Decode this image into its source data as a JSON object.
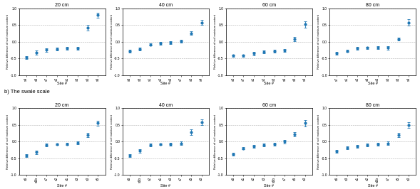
{
  "chart_data": [
    {
      "type": "scatter",
      "title": "20 cm",
      "x_label": "Site #",
      "y_label": "Relative difference of soil moisture content",
      "categories": [
        "s4",
        "s5",
        "s7",
        "s2",
        "s1",
        "s3",
        "s0",
        "s6"
      ],
      "values": [
        -0.48,
        -0.32,
        -0.25,
        -0.22,
        -0.2,
        -0.2,
        0.42,
        0.8
      ],
      "errors": [
        0.04,
        0.06,
        0.06,
        0.04,
        0.05,
        0.05,
        0.09,
        0.07
      ],
      "ylim": [
        -1.0,
        1.0
      ],
      "yticks": [
        {
          "value": -1.0,
          "label": "-1.0"
        },
        {
          "value": -0.5,
          "label": "-0.5"
        },
        {
          "value": 0.0,
          "label": "0.0"
        },
        {
          "value": 0.5,
          "label": "0.5"
        },
        {
          "value": 1.0,
          "label": "1.0"
        }
      ],
      "grid": "y",
      "marker": "circle"
    },
    {
      "type": "scatter",
      "title": "40 cm",
      "x_label": "Site #",
      "y_label": "Relative difference of soil moisture content",
      "categories": [
        "s6",
        "s5",
        "s1",
        "s2",
        "s3",
        "s7",
        "s0",
        "s4"
      ],
      "values": [
        -0.28,
        -0.22,
        -0.08,
        -0.04,
        -0.02,
        0.02,
        0.26,
        0.58
      ],
      "errors": [
        0.05,
        0.05,
        0.04,
        0.04,
        0.04,
        0.04,
        0.06,
        0.07
      ],
      "ylim": [
        -1.0,
        1.0
      ],
      "yticks": [
        {
          "value": -1.0,
          "label": "-1.0"
        },
        {
          "value": -0.5,
          "label": "-0.5"
        },
        {
          "value": 0.0,
          "label": "0.0"
        },
        {
          "value": 0.5,
          "label": "0.5"
        },
        {
          "value": 1.0,
          "label": "1.0"
        }
      ],
      "grid": "y",
      "marker": "circle"
    },
    {
      "type": "scatter",
      "title": "60 cm",
      "x_label": "Site #",
      "y_label": "Relative difference of soil moisture content",
      "categories": [
        "s0",
        "s7",
        "s1",
        "s2",
        "s3",
        "s6",
        "s5",
        "s4"
      ],
      "values": [
        -0.42,
        -0.42,
        -0.35,
        -0.3,
        -0.28,
        -0.26,
        0.08,
        0.52
      ],
      "errors": [
        0.04,
        0.04,
        0.05,
        0.04,
        0.04,
        0.05,
        0.07,
        0.1
      ],
      "ylim": [
        -1.0,
        1.0
      ],
      "yticks": [
        {
          "value": -1.0,
          "label": "-1.0"
        },
        {
          "value": -0.5,
          "label": "-0.5"
        },
        {
          "value": 0.0,
          "label": "0.0"
        },
        {
          "value": 0.5,
          "label": "0.5"
        },
        {
          "value": 1.0,
          "label": "1.0"
        }
      ],
      "grid": "y",
      "marker": "circle"
    },
    {
      "type": "scatter",
      "title": "80 cm",
      "x_label": "Site #",
      "y_label": "Relative difference of soil moisture content",
      "categories": [
        "s7",
        "s1",
        "s2",
        "s6",
        "s3",
        "s0",
        "s5",
        "s4"
      ],
      "values": [
        -0.35,
        -0.28,
        -0.2,
        -0.18,
        -0.18,
        -0.18,
        0.08,
        0.58
      ],
      "errors": [
        0.04,
        0.03,
        0.04,
        0.03,
        0.04,
        0.05,
        0.05,
        0.09
      ],
      "ylim": [
        -1.0,
        1.0
      ],
      "yticks": [
        {
          "value": -1.0,
          "label": "-1.0"
        },
        {
          "value": -0.5,
          "label": "-0.5"
        },
        {
          "value": 0.0,
          "label": "0.0"
        },
        {
          "value": 0.5,
          "label": "0.5"
        },
        {
          "value": 1.0,
          "label": "1.0"
        }
      ],
      "grid": "y",
      "marker": "circle"
    },
    {
      "type": "scatter",
      "title": "20 cm",
      "x_label": "Site #",
      "y_label": "Relative difference of soil moisture content",
      "annotation": "b) The swale scale",
      "categories": [
        "s6",
        "s6b",
        "s7",
        "s2",
        "s1",
        "s3",
        "s0",
        "s5"
      ],
      "values": [
        -0.42,
        -0.32,
        -0.1,
        -0.08,
        -0.07,
        -0.04,
        0.2,
        0.55
      ],
      "errors": [
        0.04,
        0.05,
        0.04,
        0.03,
        0.04,
        0.04,
        0.07,
        0.07
      ],
      "ylim": [
        -1.0,
        1.0
      ],
      "yticks": [
        {
          "value": -1.0,
          "label": "-1.0"
        },
        {
          "value": -0.5,
          "label": "-0.5"
        },
        {
          "value": 0.0,
          "label": "0.0"
        },
        {
          "value": 0.5,
          "label": "0.5"
        },
        {
          "value": 1.0,
          "label": "1.0"
        }
      ],
      "grid": "y",
      "marker": "circle"
    },
    {
      "type": "scatter",
      "title": "40 cm",
      "x_label": "Site #",
      "y_label": "Relative difference of soil moisture content",
      "categories": [
        "s6",
        "s6b",
        "s2",
        "s1",
        "s3",
        "s7",
        "s5",
        "s0"
      ],
      "values": [
        -0.42,
        -0.28,
        -0.1,
        -0.08,
        -0.08,
        -0.05,
        0.28,
        0.58
      ],
      "errors": [
        0.04,
        0.05,
        0.04,
        0.03,
        0.04,
        0.06,
        0.09,
        0.09
      ],
      "ylim": [
        -1.0,
        1.0
      ],
      "yticks": [
        {
          "value": -1.0,
          "label": "-1.0"
        },
        {
          "value": -0.5,
          "label": "-0.5"
        },
        {
          "value": 0.0,
          "label": "0.0"
        },
        {
          "value": 0.5,
          "label": "0.5"
        },
        {
          "value": 1.0,
          "label": "1.0"
        }
      ],
      "grid": "y",
      "marker": "circle"
    },
    {
      "type": "scatter",
      "title": "60 cm",
      "x_label": "Site #",
      "y_label": "Relative difference of soil moisture content",
      "categories": [
        "s6",
        "s1",
        "s2",
        "s3",
        "s6b",
        "s7",
        "s5",
        "s0"
      ],
      "values": [
        -0.38,
        -0.2,
        -0.15,
        -0.1,
        -0.08,
        0.0,
        0.22,
        0.55
      ],
      "errors": [
        0.05,
        0.04,
        0.04,
        0.04,
        0.04,
        0.05,
        0.07,
        0.09
      ],
      "ylim": [
        -1.0,
        1.0
      ],
      "yticks": [
        {
          "value": -1.0,
          "label": "-1.0"
        },
        {
          "value": -0.5,
          "label": "-0.5"
        },
        {
          "value": 0.0,
          "label": "0.0"
        },
        {
          "value": 0.5,
          "label": "0.5"
        },
        {
          "value": 1.0,
          "label": "1.0"
        }
      ],
      "grid": "y",
      "marker": "circle"
    },
    {
      "type": "scatter",
      "title": "80 cm",
      "x_label": "Site #",
      "y_label": "Relative difference of soil moisture content",
      "categories": [
        "s6",
        "s3",
        "s1",
        "s2",
        "s6b",
        "s7",
        "s5",
        "s0"
      ],
      "values": [
        -0.3,
        -0.18,
        -0.15,
        -0.1,
        -0.08,
        -0.05,
        0.2,
        0.5
      ],
      "errors": [
        0.04,
        0.04,
        0.04,
        0.04,
        0.04,
        0.05,
        0.07,
        0.09
      ],
      "ylim": [
        -1.0,
        1.0
      ],
      "yticks": [
        {
          "value": -1.0,
          "label": "-1.0"
        },
        {
          "value": -0.5,
          "label": "-0.5"
        },
        {
          "value": 0.0,
          "label": "0.0"
        },
        {
          "value": 0.5,
          "label": "0.5"
        },
        {
          "value": 1.0,
          "label": "1.0"
        }
      ],
      "grid": "y",
      "marker": "circle"
    }
  ]
}
